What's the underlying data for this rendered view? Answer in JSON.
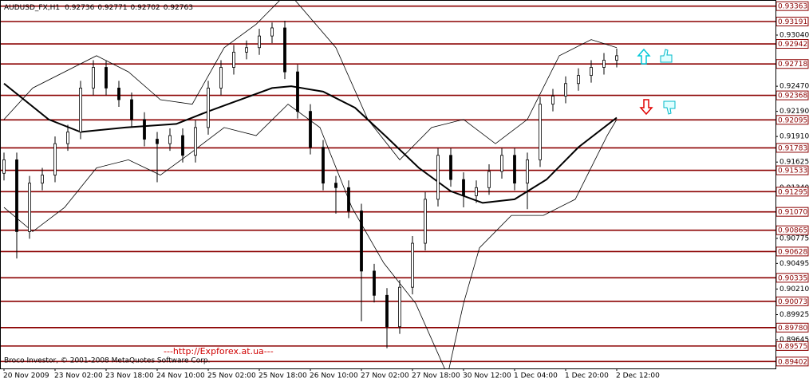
{
  "chart_data": {
    "type": "candlestick",
    "header": {
      "symbol": "AUDUSD_FX,H1",
      "values": [
        0.92736,
        0.92771,
        0.92702,
        0.92763
      ]
    },
    "x": [
      0,
      4,
      8,
      12,
      16,
      20,
      24,
      28,
      32,
      36,
      40,
      44,
      48,
      52,
      56,
      60,
      64,
      68,
      72,
      76,
      80,
      84,
      88,
      92,
      96,
      100,
      104,
      108,
      112,
      116,
      120,
      124,
      128,
      132,
      136,
      140,
      144,
      148,
      152,
      156,
      160,
      164,
      168,
      172,
      176,
      180,
      184,
      188,
      192
    ],
    "open": [
      0.915,
      0.9165,
      0.9085,
      0.9139,
      0.9148,
      0.9183,
      0.9196,
      0.9245,
      0.9268,
      0.9245,
      0.9232,
      0.921,
      0.9188,
      0.9183,
      0.9192,
      0.917,
      0.9201,
      0.9245,
      0.9268,
      0.9285,
      0.929,
      0.9303,
      0.9312,
      0.9263,
      0.9219,
      0.9179,
      0.9139,
      0.9134,
      0.9108,
      0.9041,
      0.9014,
      0.8979,
      0.9023,
      0.9072,
      0.9121,
      0.917,
      0.9143,
      0.9125,
      0.9134,
      0.9152,
      0.917,
      0.9139,
      0.9165,
      0.9227,
      0.9236,
      0.925,
      0.9259,
      0.9268,
      0.9276
    ],
    "high": [
      0.9173,
      0.9173,
      0.9147,
      0.9156,
      0.9191,
      0.9204,
      0.9253,
      0.9276,
      0.9276,
      0.9253,
      0.924,
      0.9218,
      0.9196,
      0.92,
      0.92,
      0.9209,
      0.9253,
      0.9276,
      0.9293,
      0.9298,
      0.9311,
      0.9318,
      0.932,
      0.9271,
      0.9227,
      0.9187,
      0.9147,
      0.9142,
      0.9116,
      0.9049,
      0.9022,
      0.9031,
      0.908,
      0.9129,
      0.9178,
      0.9178,
      0.9151,
      0.9142,
      0.916,
      0.9178,
      0.9178,
      0.9173,
      0.9235,
      0.9244,
      0.9258,
      0.9267,
      0.9276,
      0.9284,
      0.9289
    ],
    "low": [
      0.9142,
      0.9055,
      0.9077,
      0.9131,
      0.914,
      0.9175,
      0.9188,
      0.9237,
      0.9237,
      0.9224,
      0.9202,
      0.918,
      0.914,
      0.9175,
      0.9162,
      0.9162,
      0.9193,
      0.9237,
      0.926,
      0.9277,
      0.9282,
      0.9295,
      0.9255,
      0.9211,
      0.9171,
      0.9131,
      0.9105,
      0.91,
      0.8985,
      0.9006,
      0.8955,
      0.8971,
      0.9015,
      0.9064,
      0.9113,
      0.9135,
      0.9112,
      0.9117,
      0.9126,
      0.9144,
      0.9131,
      0.911,
      0.9157,
      0.9219,
      0.9228,
      0.9242,
      0.9251,
      0.926,
      0.9268
    ],
    "close": [
      0.9165,
      0.9085,
      0.9139,
      0.9148,
      0.9183,
      0.9196,
      0.9245,
      0.9268,
      0.9245,
      0.9232,
      0.921,
      0.9188,
      0.9183,
      0.9192,
      0.917,
      0.9201,
      0.9245,
      0.9268,
      0.9285,
      0.929,
      0.9303,
      0.9312,
      0.9263,
      0.9219,
      0.9179,
      0.9139,
      0.9134,
      0.9108,
      0.9041,
      0.9014,
      0.8979,
      0.9023,
      0.9072,
      0.9121,
      0.917,
      0.9143,
      0.9125,
      0.9134,
      0.9152,
      0.917,
      0.9139,
      0.9165,
      0.9227,
      0.9236,
      0.925,
      0.9259,
      0.9268,
      0.9276,
      0.9281
    ],
    "indicators": [
      {
        "color": "#000000",
        "width": 2,
        "x": [
          0,
          14,
          24,
          38,
          54,
          64,
          74,
          84,
          90,
          100,
          110,
          120,
          130,
          140,
          150,
          160,
          170,
          180,
          192
        ],
        "values": [
          0.925,
          0.921,
          0.9196,
          0.9201,
          0.9205,
          0.9219,
          0.9232,
          0.9245,
          0.9247,
          0.9241,
          0.9223,
          0.919,
          0.9156,
          0.913,
          0.9117,
          0.9121,
          0.9143,
          0.9179,
          0.9212
        ]
      },
      {
        "color": "#000000",
        "width": 0.8,
        "x": [
          0,
          9,
          29,
          39,
          49,
          59,
          69,
          79,
          89,
          104,
          114,
          124,
          134,
          144,
          154,
          164,
          174,
          184,
          192
        ],
        "values": [
          0.921,
          0.9245,
          0.9281,
          0.9263,
          0.9232,
          0.9227,
          0.929,
          0.9316,
          0.9352,
          0.929,
          0.921,
          0.9165,
          0.9201,
          0.921,
          0.9183,
          0.921,
          0.9281,
          0.9299,
          0.929
        ]
      },
      {
        "color": "#000000",
        "width": 0.8,
        "x": [
          0,
          9,
          19,
          29,
          39,
          49,
          59,
          69,
          79,
          89,
          99,
          109,
          119,
          129,
          139,
          144,
          149,
          159,
          169,
          179,
          189,
          192
        ],
        "values": [
          0.9112,
          0.9085,
          0.9112,
          0.9156,
          0.9165,
          0.9148,
          0.9174,
          0.9201,
          0.9192,
          0.9227,
          0.9201,
          0.9112,
          0.905,
          0.9005,
          0.8925,
          0.9005,
          0.9067,
          0.9103,
          0.9103,
          0.9121,
          0.9192,
          0.921
        ]
      }
    ],
    "xlim": [
      -1.25,
      241.75
    ],
    "xticks": [
      {
        "value": 0,
        "label": "20 Nov 2009"
      },
      {
        "value": 16,
        "label": "23 Nov 02:00"
      },
      {
        "value": 32,
        "label": "23 Nov 18:00"
      },
      {
        "value": 48,
        "label": "24 Nov 10:00"
      },
      {
        "value": 64,
        "label": "25 Nov 02:00"
      },
      {
        "value": 80,
        "label": "25 Nov 18:00"
      },
      {
        "value": 96,
        "label": "26 Nov 10:00"
      },
      {
        "value": 112,
        "label": "27 Nov 02:00"
      },
      {
        "value": 128,
        "label": "27 Nov 18:00"
      },
      {
        "value": 144,
        "label": "30 Nov 12:00"
      },
      {
        "value": 160,
        "label": "1 Dec 04:00"
      },
      {
        "value": 176,
        "label": "1 Dec 20:00"
      },
      {
        "value": 192,
        "label": "2 Dec 12:00"
      }
    ],
    "ylim": [
      0.89325,
      0.93431
    ],
    "yticks": [
      {
        "value": 0.9304,
        "label": "0.93040"
      },
      {
        "value": 0.9247,
        "label": "0.92470"
      },
      {
        "value": 0.9219,
        "label": "0.92190"
      },
      {
        "value": 0.9191,
        "label": "0.91910"
      },
      0.91625,
      {
        "value": 0.9134,
        "label": "0.91340"
      },
      0.90775,
      0.90495,
      {
        "value": 0.9021,
        "label": "0.90210"
      },
      0.89925,
      0.89645
    ],
    "levels": [
      0.93363,
      0.93191,
      0.92942,
      0.92718,
      0.92368,
      0.92095,
      0.91783,
      0.91533,
      0.91295,
      {
        "value": 0.9107,
        "label": "0.91070"
      },
      0.90865,
      0.90628,
      0.90335,
      0.90073,
      {
        "value": 0.8978,
        "label": "0.89780"
      },
      0.89575,
      0.89402
    ],
    "level_color": "#8b0000",
    "copyright": "Broco Investor, © 2001-2008 MetaQuotes Software Corp.",
    "watermark": "---http://Expforex.at.ua---"
  }
}
